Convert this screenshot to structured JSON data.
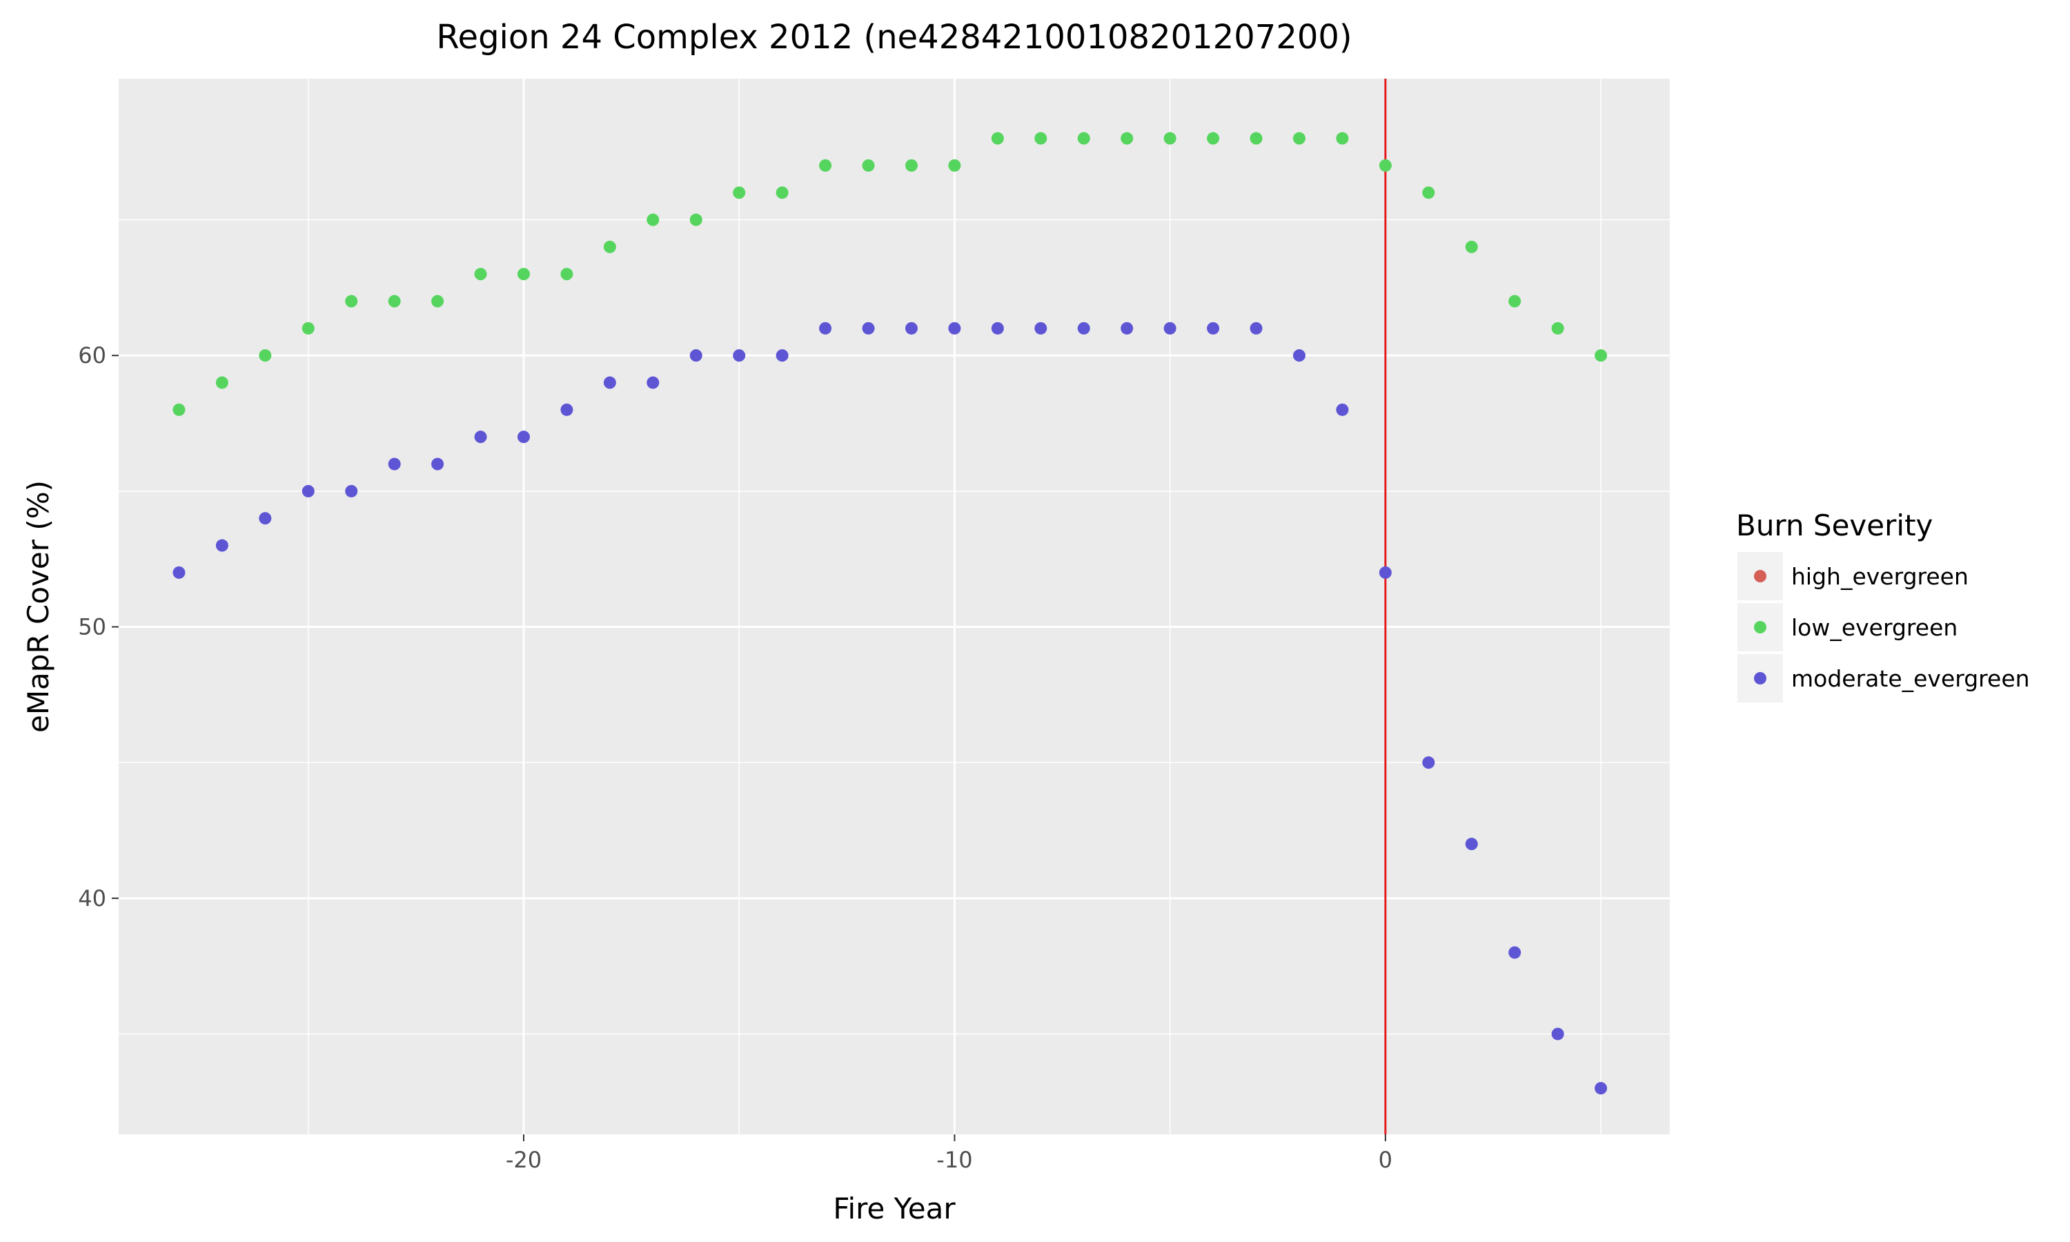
{
  "chart_data": {
    "type": "scatter",
    "title": "Region 24 Complex 2012 (ne42842100108201207200)",
    "xlabel": "Fire Year",
    "ylabel": "eMapR Cover (%)",
    "xlim": [
      -29.4,
      6.6
    ],
    "ylim": [
      31.3,
      70.2
    ],
    "x_ticks": [
      -20,
      -10,
      0
    ],
    "x_tick_labels": [
      "-20",
      "-10",
      "0"
    ],
    "y_ticks": [
      40,
      50,
      60
    ],
    "y_tick_labels": [
      "40",
      "50",
      "60"
    ],
    "grid": true,
    "reference_line": {
      "x": 0,
      "color": "#e31a1c"
    },
    "legend": {
      "title": "Burn Severity",
      "placement": "right",
      "entries": [
        "high_evergreen",
        "low_evergreen",
        "moderate_evergreen"
      ]
    },
    "series": [
      {
        "name": "high_evergreen",
        "color": "#d55e57",
        "x": [],
        "y": []
      },
      {
        "name": "low_evergreen",
        "color": "#55d55e",
        "x": [
          -28,
          -27,
          -26,
          -25,
          -24,
          -23,
          -22,
          -21,
          -20,
          -19,
          -18,
          -17,
          -16,
          -15,
          -14,
          -13,
          -12,
          -11,
          -10,
          -9,
          -8,
          -7,
          -6,
          -5,
          -4,
          -3,
          -2,
          -1,
          0,
          1,
          2,
          3,
          4,
          5
        ],
        "y": [
          58,
          59,
          60,
          61,
          62,
          62,
          62,
          63,
          63,
          63,
          64,
          65,
          65,
          66,
          66,
          67,
          67,
          67,
          67,
          68,
          68,
          68,
          68,
          68,
          68,
          68,
          68,
          68,
          67,
          66,
          64,
          62,
          61,
          60
        ]
      },
      {
        "name": "moderate_evergreen",
        "color": "#5e55d5",
        "x": [
          -28,
          -27,
          -26,
          -25,
          -24,
          -23,
          -22,
          -21,
          -20,
          -19,
          -18,
          -17,
          -16,
          -15,
          -14,
          -13,
          -12,
          -11,
          -10,
          -9,
          -8,
          -7,
          -6,
          -5,
          -4,
          -3,
          -2,
          -1,
          0,
          1,
          2,
          3,
          4,
          5
        ],
        "y": [
          52,
          53,
          54,
          55,
          55,
          56,
          56,
          57,
          57,
          58,
          59,
          59,
          60,
          60,
          60,
          61,
          61,
          61,
          61,
          61,
          61,
          61,
          61,
          61,
          61,
          61,
          60,
          58,
          52,
          45,
          42,
          38,
          35,
          33
        ]
      }
    ]
  }
}
